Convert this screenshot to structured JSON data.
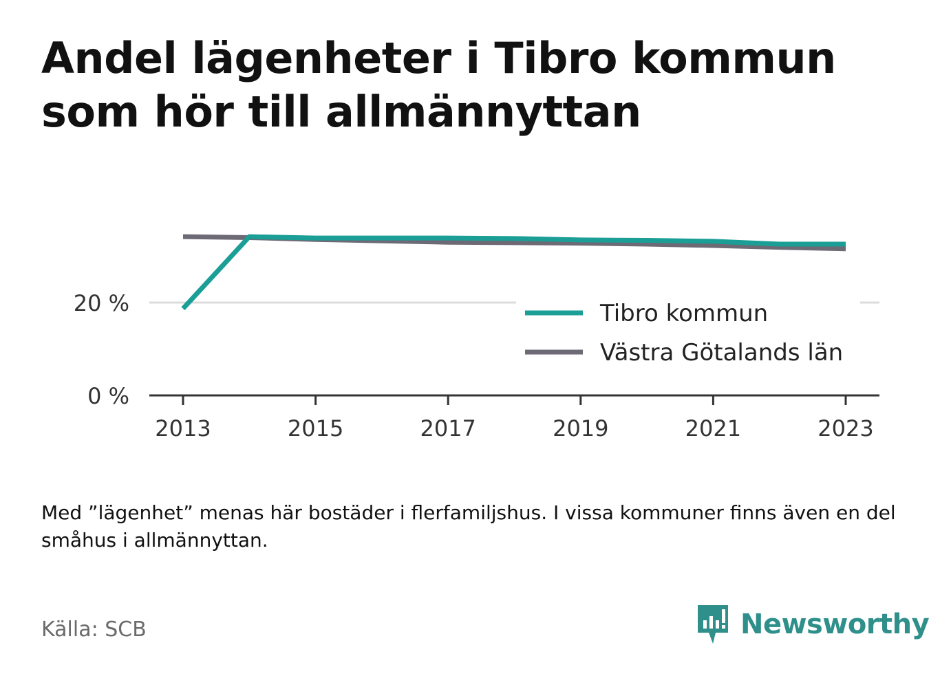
{
  "title": "Andel lägenheter i Tibro kommun som hör till allmännyttan",
  "footnote": "Med ”lägenhet” menas här bostäder i flerfamiljshus. I vissa kommuner finns även en del småhus i allmännyttan.",
  "source": "Källa: SCB",
  "brand": {
    "name": "Newsworthy",
    "icon": "newsworthy-logo-icon",
    "color": "#2f8f8a"
  },
  "chart_data": {
    "type": "line",
    "x": [
      2013,
      2014,
      2015,
      2016,
      2017,
      2018,
      2019,
      2020,
      2021,
      2022,
      2023
    ],
    "xticks": [
      "2013",
      "2015",
      "2017",
      "2019",
      "2021",
      "2023"
    ],
    "yticks": [
      "0 %",
      "20 %"
    ],
    "ytick_values": [
      0,
      20
    ],
    "ylim": [
      0,
      35
    ],
    "grid": "horizontal",
    "legend_position": "right",
    "series": [
      {
        "name": "Tibro kommun",
        "color": "#1a9e96",
        "values": [
          18.7,
          34.2,
          33.9,
          33.9,
          33.9,
          33.8,
          33.5,
          33.4,
          33.2,
          32.6,
          32.6
        ]
      },
      {
        "name": "Västra Götalands län",
        "color": "#6d6a75",
        "values": [
          34.2,
          34.0,
          33.6,
          33.3,
          33.0,
          32.9,
          32.8,
          32.6,
          32.3,
          31.9,
          31.6
        ]
      }
    ]
  }
}
